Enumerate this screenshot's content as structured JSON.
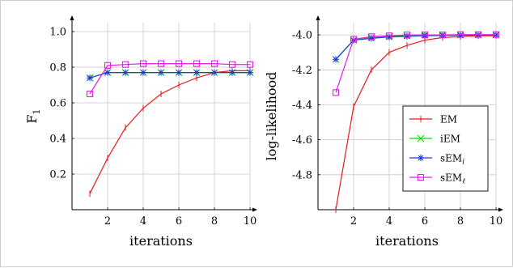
{
  "chart_data": [
    {
      "type": "line",
      "ylabel": "F",
      "ylabel_sub": "1",
      "xlabel": "iterations",
      "xlim": [
        0,
        10
      ],
      "ylim": [
        0,
        1.05
      ],
      "xticks": [
        2,
        4,
        6,
        8,
        10
      ],
      "yticks": [
        0.2,
        0.4,
        0.6,
        0.8,
        1.0
      ],
      "ytick_labels": [
        "0.2",
        "0.4",
        "0.6",
        "0.8",
        "1.0"
      ],
      "grid": true,
      "x": [
        1,
        2,
        3,
        4,
        5,
        6,
        7,
        8,
        9,
        10
      ],
      "series": [
        {
          "name": "EM",
          "color": "#e8191c",
          "marker": "plus",
          "values": [
            0.09,
            0.29,
            0.46,
            0.57,
            0.65,
            0.7,
            0.74,
            0.77,
            0.78,
            0.78
          ]
        },
        {
          "name": "iEM",
          "color": "#00e000",
          "marker": "cross",
          "values": [
            0.74,
            0.77,
            0.77,
            0.77,
            0.77,
            0.77,
            0.77,
            0.77,
            0.77,
            0.77
          ]
        },
        {
          "name": "sEM_i",
          "color": "#1f3bd8",
          "marker": "star",
          "values": [
            0.74,
            0.77,
            0.77,
            0.77,
            0.77,
            0.77,
            0.77,
            0.77,
            0.77,
            0.77
          ]
        },
        {
          "name": "sEM_l",
          "color": "#e61ee6",
          "marker": "square",
          "values": [
            0.65,
            0.81,
            0.815,
            0.82,
            0.82,
            0.82,
            0.82,
            0.82,
            0.815,
            0.815
          ]
        }
      ]
    },
    {
      "type": "line",
      "ylabel": "log-likelihood",
      "xlabel": "iterations",
      "xlim": [
        0,
        10
      ],
      "ylim": [
        -5.0,
        -3.93
      ],
      "xticks": [
        2,
        4,
        6,
        8,
        10
      ],
      "yticks": [
        -4.8,
        -4.6,
        -4.4,
        -4.2,
        -4.0
      ],
      "ytick_labels": [
        "-4.8",
        "-4.6",
        "-4.4",
        "-4.2",
        "-4.0"
      ],
      "grid": true,
      "legend_position": "bottom-right",
      "x": [
        1,
        2,
        3,
        4,
        5,
        6,
        7,
        8,
        9,
        10
      ],
      "series": [
        {
          "name": "EM",
          "color": "#e8191c",
          "marker": "plus",
          "values": [
            -5.0,
            -4.41,
            -4.2,
            -4.1,
            -4.06,
            -4.03,
            -4.015,
            -4.01,
            -4.005,
            -4.005
          ]
        },
        {
          "name": "iEM",
          "color": "#00e000",
          "marker": "cross",
          "values": [
            -4.14,
            -4.03,
            -4.015,
            -4.01,
            -4.005,
            -4.0,
            -4.0,
            -4.0,
            -4.0,
            -4.0
          ]
        },
        {
          "name": "sEM_i",
          "color": "#1f3bd8",
          "marker": "star",
          "values": [
            -4.14,
            -4.03,
            -4.02,
            -4.012,
            -4.008,
            -4.005,
            -4.003,
            -4.002,
            -4.001,
            -4.0
          ]
        },
        {
          "name": "sEM_l",
          "color": "#e61ee6",
          "marker": "square",
          "values": [
            -4.33,
            -4.025,
            -4.01,
            -4.005,
            -4.0,
            -4.0,
            -4.0,
            -3.998,
            -3.998,
            -3.998
          ]
        }
      ]
    }
  ],
  "legend": {
    "items": [
      {
        "label": "EM",
        "sub": "",
        "color": "#e8191c",
        "marker": "plus"
      },
      {
        "label": "iEM",
        "sub": "",
        "color": "#00e000",
        "marker": "cross"
      },
      {
        "label": "sEM",
        "sub": "i",
        "color": "#1f3bd8",
        "marker": "star"
      },
      {
        "label": "sEM",
        "sub": "ℓ",
        "color": "#e61ee6",
        "marker": "square"
      }
    ]
  }
}
